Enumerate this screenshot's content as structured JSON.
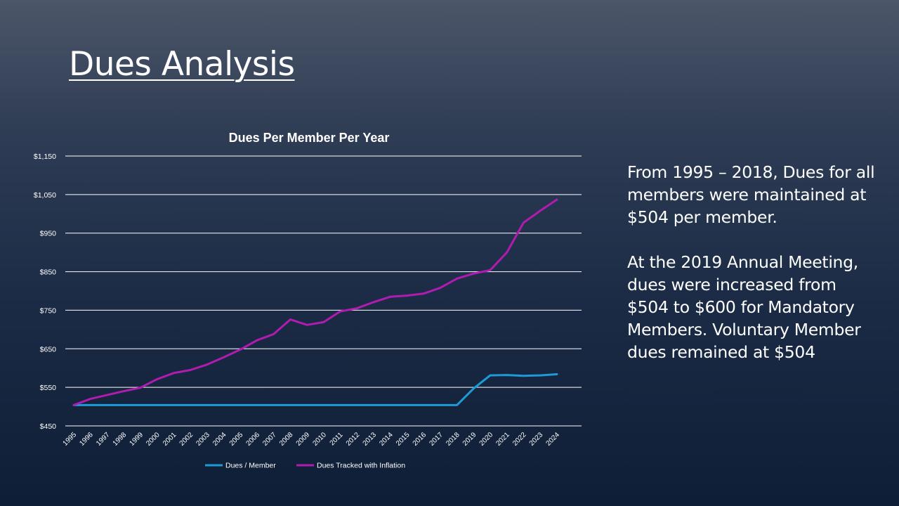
{
  "slide": {
    "title": "Dues Analysis",
    "notes": [
      "From 1995 – 2018, Dues for all members were maintained at $504 per member.",
      "At the 2019 Annual Meeting, dues were increased from $504 to $600 for Mandatory Members.  Voluntary Member dues remained at $504"
    ]
  },
  "chart_data": {
    "type": "line",
    "title": "Dues Per Member Per Year",
    "xlabel": "",
    "ylabel": "",
    "ylim": [
      450,
      1150
    ],
    "yticks": [
      450,
      550,
      650,
      750,
      850,
      950,
      1050,
      1150
    ],
    "ytick_labels": [
      "$450",
      "$550",
      "$650",
      "$750",
      "$850",
      "$950",
      "$1,050",
      "$1,150"
    ],
    "grid": true,
    "legend": "bottom",
    "categories": [
      "1995",
      "1996",
      "1997",
      "1998",
      "1999",
      "2000",
      "2001",
      "2002",
      "2003",
      "2004",
      "2005",
      "2006",
      "2007",
      "2008",
      "2009",
      "2010",
      "2011",
      "2012",
      "2013",
      "2014",
      "2015",
      "2016",
      "2017",
      "2018",
      "2019",
      "2020",
      "2021",
      "2022",
      "2023",
      "2024"
    ],
    "series": [
      {
        "name": "Dues / Member",
        "color": "#1e9bd7",
        "values": [
          504,
          504,
          504,
          504,
          504,
          504,
          504,
          504,
          504,
          504,
          504,
          504,
          504,
          504,
          504,
          504,
          504,
          504,
          504,
          504,
          504,
          504,
          504,
          504,
          547,
          581,
          582,
          580,
          581,
          584
        ]
      },
      {
        "name": "Dues Tracked with Inflation",
        "color": "#b01bb0",
        "values": [
          504,
          520,
          530,
          540,
          549,
          571,
          587,
          595,
          609,
          628,
          648,
          672,
          688,
          726,
          712,
          719,
          747,
          755,
          771,
          785,
          788,
          793,
          808,
          832,
          845,
          854,
          900,
          977,
          1008,
          1037
        ]
      }
    ]
  }
}
